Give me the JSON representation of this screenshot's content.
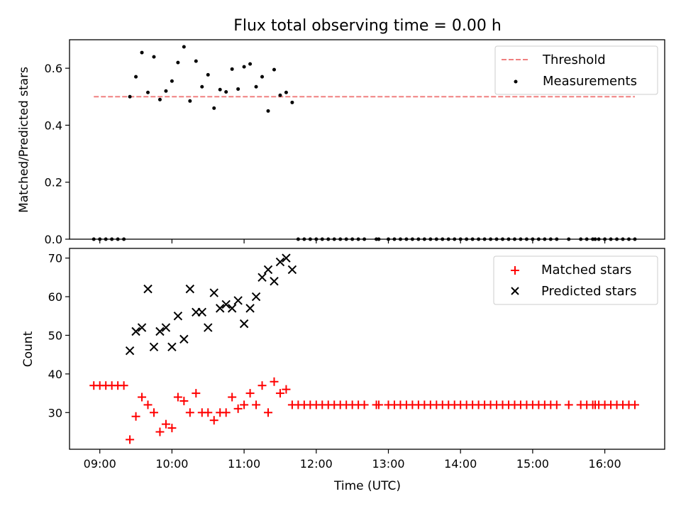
{
  "chart_data": [
    {
      "type": "scatter",
      "title": "Flux total observing time = 0.00 h",
      "xlabel": "",
      "ylabel": "Matched/Predicted stars",
      "ylim": [
        0,
        0.7
      ],
      "yticks": [
        0.0,
        0.2,
        0.4,
        0.6
      ],
      "ytick_labels": [
        "0.0",
        "0.2",
        "0.4",
        "0.6"
      ],
      "xlim_hours": [
        8.58,
        16.83
      ],
      "xticks_hours": [
        9,
        10,
        11,
        12,
        13,
        14,
        15,
        16
      ],
      "grid": false,
      "legend_position": "top-right",
      "legend": [
        "Threshold",
        "Measurements"
      ],
      "colors": {
        "threshold": "#f08080",
        "measurements": "#000000"
      },
      "threshold": {
        "name": "Threshold",
        "y": 0.5,
        "x_start": "08:55",
        "x_end": "16:25"
      },
      "series": [
        {
          "name": "Measurements",
          "points": [
            [
              "08:55",
              0
            ],
            [
              "09:00",
              0
            ],
            [
              "09:05",
              0
            ],
            [
              "09:10",
              0
            ],
            [
              "09:15",
              0
            ],
            [
              "09:20",
              0
            ],
            [
              "09:25",
              0.5
            ],
            [
              "09:30",
              0.57
            ],
            [
              "09:35",
              0.655
            ],
            [
              "09:40",
              0.515
            ],
            [
              "09:45",
              0.64
            ],
            [
              "09:50",
              0.49
            ],
            [
              "09:55",
              0.52
            ],
            [
              "10:00",
              0.555
            ],
            [
              "10:05",
              0.62
            ],
            [
              "10:10",
              0.675
            ],
            [
              "10:15",
              0.485
            ],
            [
              "10:20",
              0.625
            ],
            [
              "10:25",
              0.535
            ],
            [
              "10:30",
              0.577
            ],
            [
              "10:35",
              0.46
            ],
            [
              "10:40",
              0.525
            ],
            [
              "10:45",
              0.517
            ],
            [
              "10:50",
              0.597
            ],
            [
              "10:55",
              0.527
            ],
            [
              "11:00",
              0.605
            ],
            [
              "11:05",
              0.615
            ],
            [
              "11:10",
              0.535
            ],
            [
              "11:15",
              0.57
            ],
            [
              "11:20",
              0.45
            ],
            [
              "11:25",
              0.595
            ],
            [
              "11:30",
              0.505
            ],
            [
              "11:35",
              0.515
            ],
            [
              "11:40",
              0.48
            ],
            [
              "11:45",
              0
            ],
            [
              "11:50",
              0
            ],
            [
              "11:55",
              0
            ],
            [
              "12:00",
              0
            ],
            [
              "12:05",
              0
            ],
            [
              "12:10",
              0
            ],
            [
              "12:15",
              0
            ],
            [
              "12:20",
              0
            ],
            [
              "12:25",
              0
            ],
            [
              "12:30",
              0
            ],
            [
              "12:35",
              0
            ],
            [
              "12:40",
              0
            ],
            [
              "12:50",
              0
            ],
            [
              "12:52",
              0
            ],
            [
              "13:00",
              0
            ],
            [
              "13:05",
              0
            ],
            [
              "13:10",
              0
            ],
            [
              "13:15",
              0
            ],
            [
              "13:20",
              0
            ],
            [
              "13:25",
              0
            ],
            [
              "13:30",
              0
            ],
            [
              "13:35",
              0
            ],
            [
              "13:40",
              0
            ],
            [
              "13:45",
              0
            ],
            [
              "13:50",
              0
            ],
            [
              "13:55",
              0
            ],
            [
              "14:00",
              0
            ],
            [
              "14:05",
              0
            ],
            [
              "14:10",
              0
            ],
            [
              "14:15",
              0
            ],
            [
              "14:20",
              0
            ],
            [
              "14:25",
              0
            ],
            [
              "14:30",
              0
            ],
            [
              "14:35",
              0
            ],
            [
              "14:40",
              0
            ],
            [
              "14:45",
              0
            ],
            [
              "14:50",
              0
            ],
            [
              "14:55",
              0
            ],
            [
              "15:00",
              0
            ],
            [
              "15:05",
              0
            ],
            [
              "15:10",
              0
            ],
            [
              "15:15",
              0
            ],
            [
              "15:20",
              0
            ],
            [
              "15:30",
              0
            ],
            [
              "15:40",
              0
            ],
            [
              "15:45",
              0
            ],
            [
              "15:50",
              0
            ],
            [
              "15:52",
              0
            ],
            [
              "15:55",
              0
            ],
            [
              "16:00",
              0
            ],
            [
              "16:05",
              0
            ],
            [
              "16:10",
              0
            ],
            [
              "16:15",
              0
            ],
            [
              "16:20",
              0
            ],
            [
              "16:25",
              0
            ]
          ]
        }
      ]
    },
    {
      "type": "scatter",
      "title": "",
      "xlabel": "Time (UTC)",
      "ylabel": "Count",
      "ylim": [
        20.5,
        72.5
      ],
      "yticks": [
        30,
        40,
        50,
        60,
        70
      ],
      "ytick_labels": [
        "30",
        "40",
        "50",
        "60",
        "70"
      ],
      "xlim_hours": [
        8.58,
        16.83
      ],
      "xticks_hours": [
        9,
        10,
        11,
        12,
        13,
        14,
        15,
        16
      ],
      "xtick_labels": [
        "09:00",
        "10:00",
        "11:00",
        "12:00",
        "13:00",
        "14:00",
        "15:00",
        "16:00"
      ],
      "grid": false,
      "legend_position": "top-right",
      "legend": [
        "Matched stars",
        "Predicted stars"
      ],
      "colors": {
        "matched": "#ff0000",
        "predicted": "#000000"
      },
      "series": [
        {
          "name": "Matched stars",
          "marker": "plus",
          "points": [
            [
              "08:55",
              37
            ],
            [
              "09:00",
              37
            ],
            [
              "09:05",
              37
            ],
            [
              "09:10",
              37
            ],
            [
              "09:15",
              37
            ],
            [
              "09:20",
              37
            ],
            [
              "09:25",
              23
            ],
            [
              "09:30",
              29
            ],
            [
              "09:35",
              34
            ],
            [
              "09:40",
              32
            ],
            [
              "09:45",
              30
            ],
            [
              "09:50",
              25
            ],
            [
              "09:55",
              27
            ],
            [
              "10:00",
              26
            ],
            [
              "10:05",
              34
            ],
            [
              "10:10",
              33
            ],
            [
              "10:15",
              30
            ],
            [
              "10:20",
              35
            ],
            [
              "10:25",
              30
            ],
            [
              "10:30",
              30
            ],
            [
              "10:35",
              28
            ],
            [
              "10:40",
              30
            ],
            [
              "10:45",
              30
            ],
            [
              "10:50",
              34
            ],
            [
              "10:55",
              31
            ],
            [
              "11:00",
              32
            ],
            [
              "11:05",
              35
            ],
            [
              "11:10",
              32
            ],
            [
              "11:15",
              37
            ],
            [
              "11:20",
              30
            ],
            [
              "11:25",
              38
            ],
            [
              "11:30",
              35
            ],
            [
              "11:35",
              36
            ],
            [
              "11:40",
              32
            ],
            [
              "11:45",
              32
            ],
            [
              "11:50",
              32
            ],
            [
              "11:55",
              32
            ],
            [
              "12:00",
              32
            ],
            [
              "12:05",
              32
            ],
            [
              "12:10",
              32
            ],
            [
              "12:15",
              32
            ],
            [
              "12:20",
              32
            ],
            [
              "12:25",
              32
            ],
            [
              "12:30",
              32
            ],
            [
              "12:35",
              32
            ],
            [
              "12:40",
              32
            ],
            [
              "12:50",
              32
            ],
            [
              "12:52",
              32
            ],
            [
              "13:00",
              32
            ],
            [
              "13:05",
              32
            ],
            [
              "13:10",
              32
            ],
            [
              "13:15",
              32
            ],
            [
              "13:20",
              32
            ],
            [
              "13:25",
              32
            ],
            [
              "13:30",
              32
            ],
            [
              "13:35",
              32
            ],
            [
              "13:40",
              32
            ],
            [
              "13:45",
              32
            ],
            [
              "13:50",
              32
            ],
            [
              "13:55",
              32
            ],
            [
              "14:00",
              32
            ],
            [
              "14:05",
              32
            ],
            [
              "14:10",
              32
            ],
            [
              "14:15",
              32
            ],
            [
              "14:20",
              32
            ],
            [
              "14:25",
              32
            ],
            [
              "14:30",
              32
            ],
            [
              "14:35",
              32
            ],
            [
              "14:40",
              32
            ],
            [
              "14:45",
              32
            ],
            [
              "14:50",
              32
            ],
            [
              "14:55",
              32
            ],
            [
              "15:00",
              32
            ],
            [
              "15:05",
              32
            ],
            [
              "15:10",
              32
            ],
            [
              "15:15",
              32
            ],
            [
              "15:20",
              32
            ],
            [
              "15:30",
              32
            ],
            [
              "15:40",
              32
            ],
            [
              "15:45",
              32
            ],
            [
              "15:50",
              32
            ],
            [
              "15:52",
              32
            ],
            [
              "15:55",
              32
            ],
            [
              "16:00",
              32
            ],
            [
              "16:05",
              32
            ],
            [
              "16:10",
              32
            ],
            [
              "16:15",
              32
            ],
            [
              "16:20",
              32
            ],
            [
              "16:25",
              32
            ]
          ]
        },
        {
          "name": "Predicted stars",
          "marker": "x",
          "points": [
            [
              "09:25",
              46
            ],
            [
              "09:30",
              51
            ],
            [
              "09:35",
              52
            ],
            [
              "09:40",
              62
            ],
            [
              "09:45",
              47
            ],
            [
              "09:50",
              51
            ],
            [
              "09:55",
              52
            ],
            [
              "10:00",
              47
            ],
            [
              "10:05",
              55
            ],
            [
              "10:10",
              49
            ],
            [
              "10:15",
              62
            ],
            [
              "10:20",
              56
            ],
            [
              "10:25",
              56
            ],
            [
              "10:30",
              52
            ],
            [
              "10:35",
              61
            ],
            [
              "10:40",
              57
            ],
            [
              "10:45",
              58
            ],
            [
              "10:50",
              57
            ],
            [
              "10:55",
              59
            ],
            [
              "11:00",
              53
            ],
            [
              "11:05",
              57
            ],
            [
              "11:10",
              60
            ],
            [
              "11:15",
              65
            ],
            [
              "11:20",
              67
            ],
            [
              "11:25",
              64
            ],
            [
              "11:30",
              69
            ],
            [
              "11:35",
              70
            ],
            [
              "11:40",
              67
            ]
          ]
        }
      ]
    }
  ]
}
